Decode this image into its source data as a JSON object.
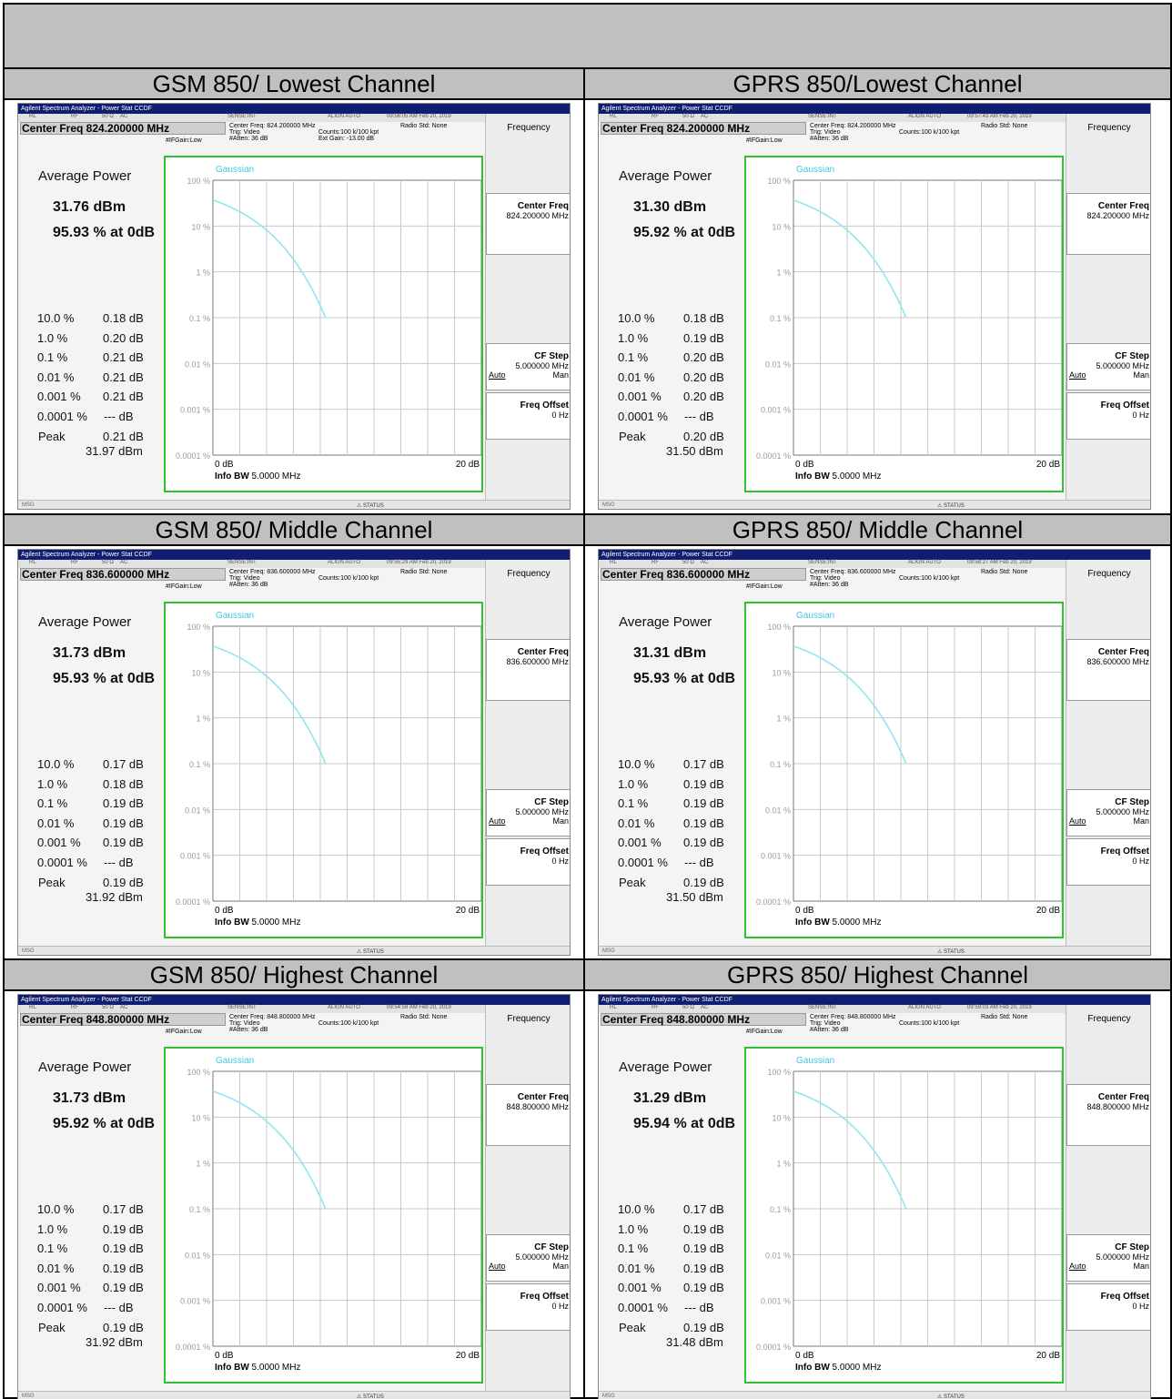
{
  "colors": {
    "header_bg": "#c0c0c0",
    "plot_border": "#31c231",
    "curve": "#8fe6ef",
    "titlebar": "#0f1e70",
    "gaussian": "#43c7e6"
  },
  "instrument": {
    "window_title": "Agilent Spectrum Analyzer - Power Stat CCDF",
    "status_row": [
      "RL",
      "RF",
      "50 Ω",
      "AC",
      "SENSE:INT",
      "ALIGN AUTO"
    ],
    "avg_power_label": "Average Power",
    "gaussian_label": "Gaussian",
    "y_ticks": [
      "100 %",
      "10 %",
      "1 %",
      "0.1 %",
      "0.01 %",
      "0.001 %",
      "0.0001 %"
    ],
    "x_start": "0 dB",
    "x_end": "20 dB",
    "info_bw_label": "Info BW",
    "info_bw_value": "5.0000 MHz",
    "trig": "Trig: Video",
    "atten": "#Atten: 36 dB",
    "ifgain": "#IFGain:Low",
    "counts": "Counts:100 k/100 kpt",
    "radio_std": "Radio Std: None",
    "msg": "MSG",
    "status": "STATUS",
    "pct_labels": [
      "10.0 %",
      "1.0 %",
      "0.1 %",
      "0.01 %",
      "0.001 %",
      "0.0001 %",
      "Peak"
    ],
    "softkeys": {
      "frequency": "Frequency",
      "center_freq": "Center Freq",
      "cf_step": "CF Step",
      "cf_step_val": "5.000000 MHz",
      "auto": "Auto",
      "man": "Man",
      "freq_offset": "Freq Offset",
      "freq_offset_val": "0 Hz"
    }
  },
  "cells": [
    {
      "title": "GSM 850/ Lowest Channel",
      "center_freq": "Center Freq 824.200000 MHz",
      "cf_small": "Center Freq: 824.200000 MHz",
      "cf_value": "824.200000 MHz",
      "ext_gain": "Ext Gain: -13.00 dB",
      "time": "09:56:05 AM Feb 20, 2019",
      "avg_power": "31.76 dBm",
      "pct_at_0db": "95.93 % at 0dB",
      "values": [
        "0.18 dB",
        "0.20 dB",
        "0.21 dB",
        "0.21 dB",
        "0.21 dB",
        "--- dB",
        "0.21 dB"
      ],
      "peak_dbm": "31.97 dBm"
    },
    {
      "title": "GPRS 850/Lowest Channel",
      "center_freq": "Center Freq 824.200000 MHz",
      "cf_small": "Center Freq: 824.200000 MHz",
      "cf_value": "824.200000 MHz",
      "ext_gain": "",
      "time": "09:57:43 AM Feb 20, 2019",
      "avg_power": "31.30 dBm",
      "pct_at_0db": "95.92 % at 0dB",
      "values": [
        "0.18 dB",
        "0.19 dB",
        "0.20 dB",
        "0.20 dB",
        "0.20 dB",
        "--- dB",
        "0.20 dB"
      ],
      "peak_dbm": "31.50 dBm"
    },
    {
      "title": "GSM 850/ Middle Channel",
      "center_freq": "Center Freq 836.600000 MHz",
      "cf_small": "Center Freq: 836.600000 MHz",
      "cf_value": "836.600000 MHz",
      "ext_gain": "",
      "time": "09:55:29 AM Feb 20, 2019",
      "avg_power": "31.73 dBm",
      "pct_at_0db": "95.93 % at 0dB",
      "values": [
        "0.17 dB",
        "0.18 dB",
        "0.19 dB",
        "0.19 dB",
        "0.19 dB",
        "--- dB",
        "0.19 dB"
      ],
      "peak_dbm": "31.92 dBm"
    },
    {
      "title": "GPRS 850/ Middle Channel",
      "center_freq": "Center Freq 836.600000 MHz",
      "cf_small": "Center Freq: 836.600000 MHz",
      "cf_value": "836.600000 MHz",
      "ext_gain": "",
      "time": "09:58:27 AM Feb 20, 2019",
      "avg_power": "31.31 dBm",
      "pct_at_0db": "95.93 % at 0dB",
      "values": [
        "0.17 dB",
        "0.19 dB",
        "0.19 dB",
        "0.19 dB",
        "0.19 dB",
        "--- dB",
        "0.19 dB"
      ],
      "peak_dbm": "31.50 dBm"
    },
    {
      "title": "GSM 850/ Highest Channel",
      "center_freq": "Center Freq 848.800000 MHz",
      "cf_small": "Center Freq: 848.800000 MHz",
      "cf_value": "848.800000 MHz",
      "ext_gain": "",
      "time": "09:54:58 AM Feb 20, 2019",
      "avg_power": "31.73 dBm",
      "pct_at_0db": "95.92 % at 0dB",
      "values": [
        "0.17 dB",
        "0.19 dB",
        "0.19 dB",
        "0.19 dB",
        "0.19 dB",
        "--- dB",
        "0.19 dB"
      ],
      "peak_dbm": "31.92 dBm"
    },
    {
      "title": "GPRS 850/ Highest Channel",
      "center_freq": "Center Freq 848.800000 MHz",
      "cf_small": "Center Freq: 848.800000 MHz",
      "cf_value": "848.800000 MHz",
      "ext_gain": "",
      "time": "09:59:03 AM Feb 20, 2019",
      "avg_power": "31.29 dBm",
      "pct_at_0db": "95.94 % at 0dB",
      "values": [
        "0.17 dB",
        "0.19 dB",
        "0.19 dB",
        "0.19 dB",
        "0.19 dB",
        "--- dB",
        "0.19 dB"
      ],
      "peak_dbm": "31.48 dBm"
    }
  ]
}
